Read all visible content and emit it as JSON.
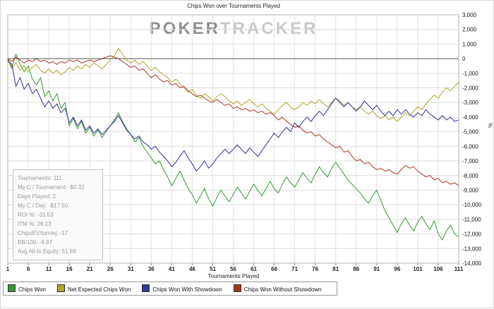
{
  "watermark": {
    "poker": "POKER",
    "tracker": "TRACKER"
  },
  "stats": {
    "lines": [
      "Tournaments: 111",
      "My C / Tournament: -$0.32",
      "Days Played: 2",
      "My C / Day: -$17.50",
      "ROI %: -31.53",
      "ITM %: 26.13",
      "ChipsEV/turniej: -17",
      "BB/100: -9.97",
      "Avg All-In Equity: 51.69"
    ]
  },
  "chart_data": {
    "type": "line",
    "title": "Chips Won over Tournaments Played",
    "xlabel": "Tournaments Played",
    "ylabel_right": "%",
    "x_range": [
      1,
      111
    ],
    "x_ticks": [
      1,
      6,
      11,
      16,
      21,
      26,
      31,
      36,
      41,
      46,
      51,
      56,
      61,
      66,
      71,
      76,
      81,
      86,
      91,
      96,
      101,
      106,
      111
    ],
    "ylim": [
      -14000,
      3000
    ],
    "y_tick_step": 1000,
    "grid": true,
    "legend_position": "bottom",
    "series": [
      {
        "name": "Chips Won",
        "color": "#339933",
        "values": [
          0,
          -600,
          300,
          -400,
          -900,
          -500,
          -1400,
          -1800,
          -1300,
          -2600,
          -2200,
          -2900,
          -2400,
          -3400,
          -3000,
          -4600,
          -4100,
          -4800,
          -4300,
          -5100,
          -4700,
          -5300,
          -4900,
          -5400,
          -5000,
          -4600,
          -4200,
          -3700,
          -4300,
          -4800,
          -5200,
          -5700,
          -5400,
          -6000,
          -6400,
          -6800,
          -7200,
          -7000,
          -7600,
          -8100,
          -8700,
          -8200,
          -7700,
          -8300,
          -8900,
          -9300,
          -9900,
          -9400,
          -8900,
          -9600,
          -10100,
          -9500,
          -9000,
          -9400,
          -9800,
          -9300,
          -8800,
          -9200,
          -9600,
          -9100,
          -8600,
          -9000,
          -9400,
          -8900,
          -8400,
          -8900,
          -9200,
          -8600,
          -8100,
          -8500,
          -8800,
          -8300,
          -7800,
          -8200,
          -8500,
          -7900,
          -7400,
          -7800,
          -8100,
          -7500,
          -7100,
          -7500,
          -7900,
          -8300,
          -8600,
          -8900,
          -9200,
          -9600,
          -9900,
          -9400,
          -9000,
          -9700,
          -10400,
          -10900,
          -11400,
          -11900,
          -11300,
          -10900,
          -11400,
          -11800,
          -11200,
          -10800,
          -11300,
          -11700,
          -11100,
          -12000,
          -12400,
          -11800,
          -11400,
          -12000,
          -12200
        ]
      },
      {
        "name": "Net Expected Chips Won",
        "color": "#b3a423",
        "values": [
          -100,
          -700,
          -300,
          -800,
          -500,
          -900,
          -600,
          -400,
          -800,
          -1000,
          -700,
          -1000,
          -800,
          -1100,
          -900,
          -600,
          -800,
          -500,
          -700,
          -400,
          -600,
          -300,
          -500,
          -700,
          -400,
          -100,
          200,
          700,
          300,
          -100,
          -300,
          -100,
          -400,
          -200,
          -500,
          -800,
          -600,
          -900,
          -1100,
          -1300,
          -1600,
          -1400,
          -1700,
          -2000,
          -2300,
          -2100,
          -2500,
          -2700,
          -2400,
          -2600,
          -2900,
          -2600,
          -2400,
          -2600,
          -2900,
          -3100,
          -2900,
          -3200,
          -3000,
          -2800,
          -3100,
          -3300,
          -3100,
          -3400,
          -3600,
          -3800,
          -3500,
          -3200,
          -3000,
          -3300,
          -3500,
          -3300,
          -3000,
          -3200,
          -2900,
          -3100,
          -2800,
          -3100,
          -3300,
          -3000,
          -2700,
          -2900,
          -3200,
          -3000,
          -3300,
          -3500,
          -3300,
          -3600,
          -3800,
          -3600,
          -3900,
          -4100,
          -3900,
          -4200,
          -4000,
          -4300,
          -4000,
          -3700,
          -3900,
          -3600,
          -3300,
          -3500,
          -3100,
          -2800,
          -2500,
          -2700,
          -2300,
          -2000,
          -2200,
          -1900,
          -1600
        ]
      },
      {
        "name": "Chips Won With Showdown",
        "color": "#333399",
        "values": [
          -100,
          -400,
          -1900,
          -1300,
          -2100,
          -1700,
          -2400,
          -2100,
          -2700,
          -3300,
          -2900,
          -3400,
          -3100,
          -3700,
          -3400,
          -4400,
          -4000,
          -4600,
          -4200,
          -4900,
          -4600,
          -5100,
          -4800,
          -5200,
          -4900,
          -4600,
          -4300,
          -3900,
          -4400,
          -4900,
          -5200,
          -5500,
          -5300,
          -5700,
          -5900,
          -6200,
          -6000,
          -6400,
          -6700,
          -7000,
          -7400,
          -7100,
          -6700,
          -6300,
          -6800,
          -7200,
          -7700,
          -7400,
          -7000,
          -7500,
          -7200,
          -6800,
          -6500,
          -6200,
          -6500,
          -6200,
          -5900,
          -6200,
          -6500,
          -6100,
          -6400,
          -6700,
          -6300,
          -5900,
          -5500,
          -5100,
          -5400,
          -5000,
          -4700,
          -5000,
          -4400,
          -4700,
          -4300,
          -4000,
          -4300,
          -3900,
          -3600,
          -3900,
          -3500,
          -3100,
          -2700,
          -3000,
          -3300,
          -3000,
          -3300,
          -3600,
          -3300,
          -2900,
          -3200,
          -3500,
          -3200,
          -3600,
          -3900,
          -3600,
          -3900,
          -3500,
          -3800,
          -3500,
          -3800,
          -4000,
          -3700,
          -3900,
          -3500,
          -3800,
          -4000,
          -4200,
          -3900,
          -4200,
          -4000,
          -4300,
          -4200
        ]
      },
      {
        "name": "Chips Won Without Showdown",
        "color": "#aa3325",
        "values": [
          0,
          -200,
          100,
          -100,
          -300,
          -100,
          -200,
          0,
          -200,
          -100,
          -300,
          -200,
          -400,
          -200,
          -300,
          -100,
          -200,
          -100,
          -300,
          -200,
          -100,
          -200,
          -100,
          0,
          100,
          200,
          100,
          0,
          -200,
          -400,
          -600,
          -500,
          -800,
          -700,
          -1000,
          -1300,
          -1100,
          -1400,
          -1600,
          -1500,
          -1800,
          -1700,
          -2000,
          -1900,
          -2200,
          -2400,
          -2600,
          -2500,
          -2700,
          -2900,
          -3000,
          -2800,
          -3000,
          -3200,
          -3100,
          -3400,
          -3300,
          -3500,
          -3400,
          -3600,
          -3500,
          -3700,
          -3600,
          -3800,
          -3700,
          -3900,
          -4200,
          -4000,
          -4300,
          -4500,
          -4700,
          -4600,
          -4900,
          -5100,
          -5000,
          -5300,
          -5200,
          -5500,
          -5700,
          -5900,
          -6100,
          -6000,
          -6400,
          -6300,
          -6700,
          -7000,
          -6900,
          -7200,
          -7100,
          -7400,
          -7600,
          -7500,
          -7700,
          -7600,
          -7800,
          -7900,
          -7600,
          -7300,
          -7500,
          -7400,
          -7700,
          -7900,
          -8100,
          -8000,
          -8300,
          -8200,
          -8500,
          -8400,
          -8600,
          -8500,
          -8700
        ]
      }
    ]
  }
}
